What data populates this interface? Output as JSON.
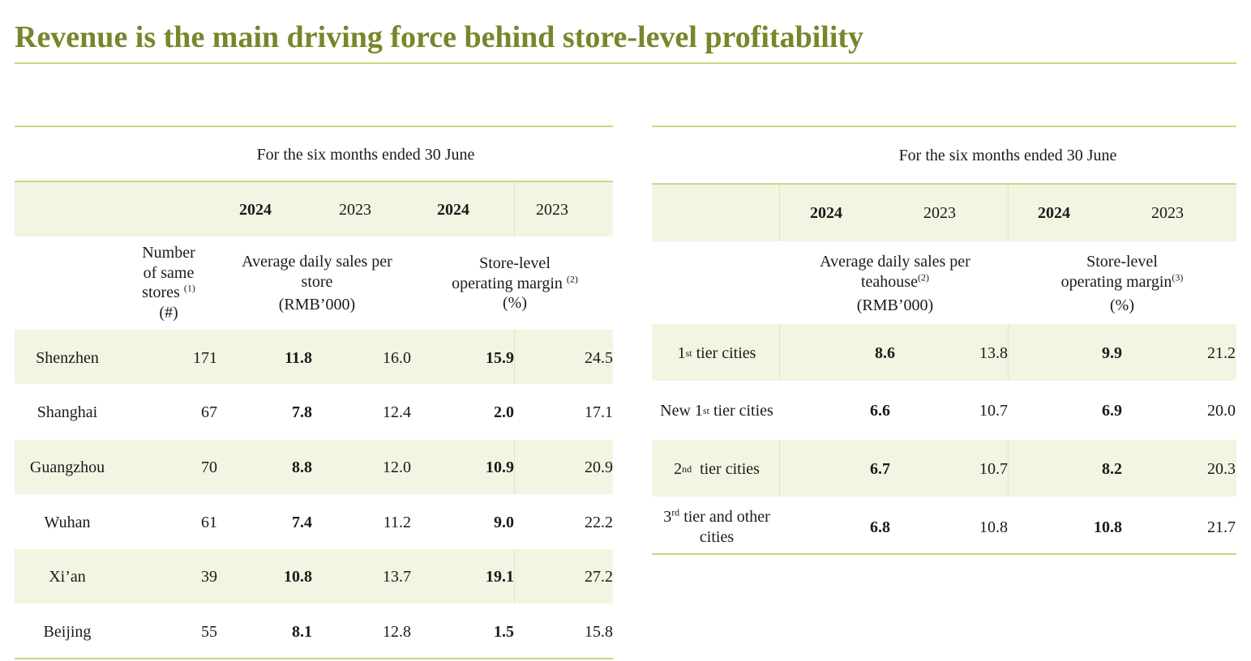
{
  "title": "Revenue is the main driving force behind store-level profitability",
  "left_table": {
    "period": "For the six months ended 30 June",
    "years": [
      "2024",
      "2023",
      "2024",
      "2023"
    ],
    "headers": {
      "stores_line1": "Number",
      "stores_line2": "of same",
      "stores_line3": "stores",
      "stores_note": "(1)",
      "stores_unit": "(#)",
      "sales_line1": "Average daily sales per",
      "sales_line2": "store",
      "sales_unit": "(RMB’000)",
      "margin_line1": "Store-level",
      "margin_line2": "operating margin",
      "margin_note": "(2)",
      "margin_unit": "(%)"
    },
    "rows": [
      {
        "city": "Shenzhen",
        "stores": "171",
        "sales_2024": "11.8",
        "sales_2023": "16.0",
        "margin_2024": "15.9",
        "margin_2023": "24.5"
      },
      {
        "city": "Shanghai",
        "stores": "67",
        "sales_2024": "7.8",
        "sales_2023": "12.4",
        "margin_2024": "2.0",
        "margin_2023": "17.1"
      },
      {
        "city": "Guangzhou",
        "stores": "70",
        "sales_2024": "8.8",
        "sales_2023": "12.0",
        "margin_2024": "10.9",
        "margin_2023": "20.9"
      },
      {
        "city": "Wuhan",
        "stores": "61",
        "sales_2024": "7.4",
        "sales_2023": "11.2",
        "margin_2024": "9.0",
        "margin_2023": "22.2"
      },
      {
        "city": "Xi’an",
        "stores": "39",
        "sales_2024": "10.8",
        "sales_2023": "13.7",
        "margin_2024": "19.1",
        "margin_2023": "27.2"
      },
      {
        "city": "Beijing",
        "stores": "55",
        "sales_2024": "8.1",
        "sales_2023": "12.8",
        "margin_2024": "1.5",
        "margin_2023": "15.8"
      }
    ]
  },
  "right_table": {
    "period": "For the six months ended 30 June",
    "years": [
      "2024",
      "2023",
      "2024",
      "2023"
    ],
    "headers": {
      "sales_line1": "Average daily sales per",
      "sales_line2": "teahouse",
      "sales_note": "(2)",
      "sales_unit": "(RMB’000)",
      "margin_line1": "Store-level",
      "margin_line2": "operating margin",
      "margin_note": "(3)",
      "margin_unit": "(%)"
    },
    "rows": [
      {
        "tier_prefix": "1",
        "tier_sup": "st",
        "tier_suffix": " tier cities",
        "sales_2024": "8.6",
        "sales_2023": "13.8",
        "margin_2024": "9.9",
        "margin_2023": "21.2"
      },
      {
        "tier_prefix": "New 1",
        "tier_sup": "st",
        "tier_suffix": " tier cities",
        "sales_2024": "6.6",
        "sales_2023": "10.7",
        "margin_2024": "6.9",
        "margin_2023": "20.0"
      },
      {
        "tier_prefix": "2",
        "tier_sup": "nd",
        "tier_suffix": "  tier cities",
        "sales_2024": "6.7",
        "sales_2023": "10.7",
        "margin_2024": "8.2",
        "margin_2023": "20.3"
      },
      {
        "tier_prefix": "3",
        "tier_sup": "rd",
        "tier_suffix": " tier and other",
        "tier_line2": "cities",
        "sales_2024": "6.8",
        "sales_2023": "10.8",
        "margin_2024": "10.8",
        "margin_2023": "21.7"
      }
    ]
  }
}
